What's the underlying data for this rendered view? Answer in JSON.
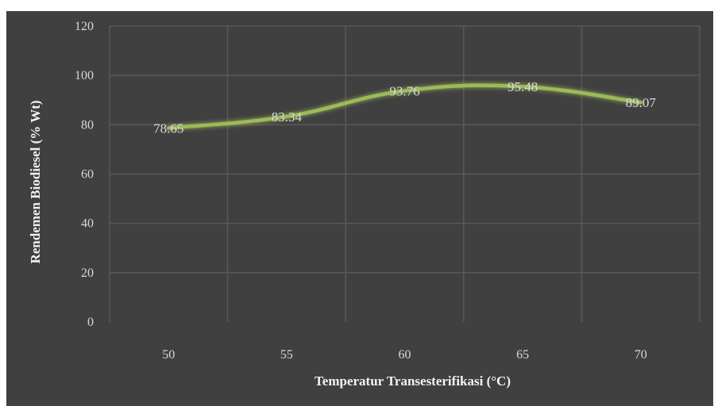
{
  "caption": "",
  "chart_data": {
    "type": "line",
    "title": "",
    "xlabel": "Temperatur Transesterifikasi (°C)",
    "ylabel": "Rendemen Biodiesel (% Wt)",
    "categories": [
      "50",
      "55",
      "60",
      "65",
      "70"
    ],
    "series": [
      {
        "values": [
          78.65,
          83.34,
          93.76,
          95.48,
          89.07
        ]
      }
    ],
    "data_labels": [
      "78.65",
      "83.34",
      "93.76",
      "95.48",
      "89.07"
    ],
    "ylim": [
      0,
      120
    ],
    "yticks": [
      "0",
      "20",
      "40",
      "60",
      "80",
      "100",
      "120"
    ],
    "grid": true,
    "line_color": "#9bbb59",
    "background": "#404040",
    "gridline_color": "#595959"
  }
}
